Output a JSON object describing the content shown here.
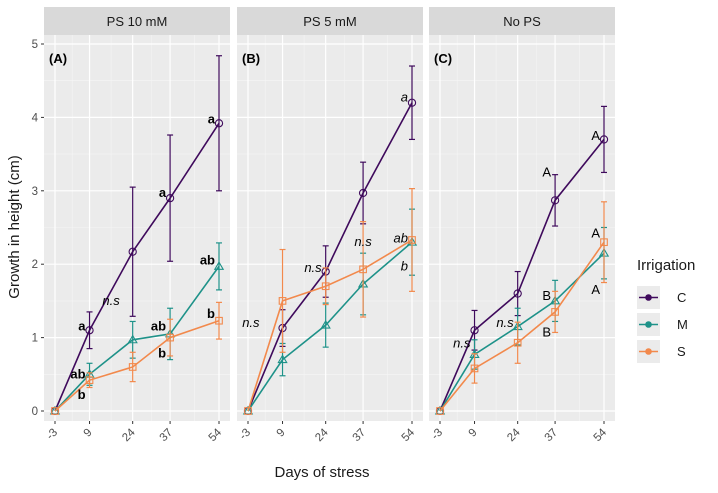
{
  "chart_data": {
    "type": "line",
    "xlabel": "Days of stress",
    "ylabel": "Growth in height (cm)",
    "x": [
      -3,
      9,
      24,
      37,
      54
    ],
    "x_tick_labels": [
      "-3",
      "9",
      "24",
      "37",
      "54"
    ],
    "ylim": [
      0,
      5
    ],
    "y_ticks": [
      0,
      1,
      2,
      3,
      4,
      5
    ],
    "grid": true,
    "legend": {
      "title": "Irrigation",
      "position": "right",
      "entries": [
        {
          "name": "C",
          "color": "#3f0a5c"
        },
        {
          "name": "M",
          "color": "#1e9289"
        },
        {
          "name": "S",
          "color": "#f2894c"
        }
      ]
    },
    "panels": [
      {
        "strip": "PS 10 mM",
        "label": "(A)",
        "series": [
          {
            "name": "C",
            "marker": "circle",
            "values": [
              0,
              1.1,
              2.17,
              2.9,
              3.92
            ],
            "errors": [
              0,
              0.25,
              0.88,
              0.86,
              0.92
            ]
          },
          {
            "name": "M",
            "marker": "triangle",
            "values": [
              0,
              0.5,
              0.97,
              1.05,
              1.97
            ],
            "errors": [
              0,
              0.15,
              0.25,
              0.35,
              0.32
            ]
          },
          {
            "name": "S",
            "marker": "square",
            "values": [
              0,
              0.42,
              0.6,
              1.0,
              1.23
            ],
            "errors": [
              0,
              0.1,
              0.2,
              0.25,
              0.25
            ]
          }
        ],
        "annotations": [
          {
            "text": "a",
            "x": 9,
            "y": 1.15,
            "style": "bold",
            "anchor": "right"
          },
          {
            "text": "ab",
            "x": 9,
            "y": 0.5,
            "style": "bold",
            "anchor": "right"
          },
          {
            "text": "b",
            "x": 9,
            "y": 0.22,
            "style": "bold",
            "anchor": "right"
          },
          {
            "text": "n.s",
            "x": 16.5,
            "y": 1.5,
            "style": "italic",
            "anchor": "middle"
          },
          {
            "text": "a",
            "x": 37,
            "y": 2.97,
            "style": "bold",
            "anchor": "right"
          },
          {
            "text": "ab",
            "x": 37,
            "y": 1.15,
            "style": "bold",
            "anchor": "right"
          },
          {
            "text": "b",
            "x": 37,
            "y": 0.78,
            "style": "bold",
            "anchor": "right"
          },
          {
            "text": "a",
            "x": 54,
            "y": 3.97,
            "style": "bold",
            "anchor": "right"
          },
          {
            "text": "ab",
            "x": 54,
            "y": 2.05,
            "style": "bold",
            "anchor": "right"
          },
          {
            "text": "b",
            "x": 54,
            "y": 1.32,
            "style": "bold",
            "anchor": "right"
          }
        ]
      },
      {
        "strip": "PS 5 mM",
        "label": "(B)",
        "series": [
          {
            "name": "C",
            "marker": "circle",
            "values": [
              0,
              1.13,
              1.9,
              2.97,
              4.2
            ],
            "errors": [
              0,
              0.25,
              0.35,
              0.42,
              0.5
            ]
          },
          {
            "name": "M",
            "marker": "triangle",
            "values": [
              0,
              0.7,
              1.17,
              1.73,
              2.3
            ],
            "errors": [
              0,
              0.22,
              0.3,
              0.42,
              0.45
            ]
          },
          {
            "name": "S",
            "marker": "square",
            "values": [
              0,
              1.5,
              1.7,
              1.93,
              2.33
            ],
            "errors": [
              0,
              0.7,
              0.25,
              0.65,
              0.7
            ]
          }
        ],
        "annotations": [
          {
            "text": "n.s",
            "x": -2,
            "y": 1.2,
            "style": "italic",
            "anchor": "middle"
          },
          {
            "text": "n.s",
            "x": 24,
            "y": 1.95,
            "style": "italic",
            "anchor": "right"
          },
          {
            "text": "n.s",
            "x": 37,
            "y": 2.3,
            "style": "italic",
            "anchor": "middle"
          },
          {
            "text": "a",
            "x": 54,
            "y": 4.27,
            "style": "italic",
            "anchor": "right"
          },
          {
            "text": "ab",
            "x": 54,
            "y": 2.35,
            "style": "italic",
            "anchor": "right"
          },
          {
            "text": "b",
            "x": 54,
            "y": 1.97,
            "style": "italic",
            "anchor": "right"
          }
        ]
      },
      {
        "strip": "No PS",
        "label": "(C)",
        "series": [
          {
            "name": "C",
            "marker": "circle",
            "values": [
              0,
              1.1,
              1.6,
              2.87,
              3.7
            ],
            "errors": [
              0,
              0.27,
              0.3,
              0.35,
              0.45
            ]
          },
          {
            "name": "M",
            "marker": "triangle",
            "values": [
              0,
              0.77,
              1.15,
              1.5,
              2.15
            ],
            "errors": [
              0,
              0.2,
              0.25,
              0.28,
              0.35
            ]
          },
          {
            "name": "S",
            "marker": "square",
            "values": [
              0,
              0.58,
              0.93,
              1.35,
              2.3
            ],
            "errors": [
              0,
              0.2,
              0.28,
              0.28,
              0.55
            ]
          }
        ],
        "annotations": [
          {
            "text": "n.s",
            "x": 9,
            "y": 0.92,
            "style": "italic",
            "anchor": "right"
          },
          {
            "text": "n.s",
            "x": 24,
            "y": 1.2,
            "style": "italic",
            "anchor": "right"
          },
          {
            "text": "A",
            "x": 37,
            "y": 3.25,
            "style": "normal",
            "anchor": "right"
          },
          {
            "text": "B",
            "x": 37,
            "y": 1.57,
            "style": "normal",
            "anchor": "right"
          },
          {
            "text": "B",
            "x": 37,
            "y": 1.07,
            "style": "normal",
            "anchor": "right"
          },
          {
            "text": "A",
            "x": 54,
            "y": 3.75,
            "style": "normal",
            "anchor": "right"
          },
          {
            "text": "A",
            "x": 54,
            "y": 2.42,
            "style": "normal",
            "anchor": "right"
          },
          {
            "text": "A",
            "x": 54,
            "y": 1.65,
            "style": "normal",
            "anchor": "right"
          }
        ]
      }
    ]
  }
}
